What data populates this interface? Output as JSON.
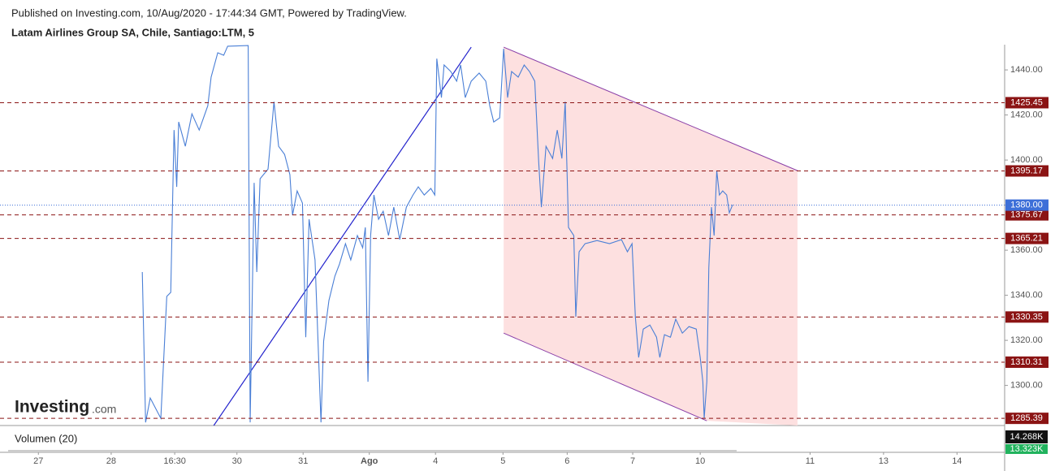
{
  "header": {
    "published": "Published on Investing.com, 10/Aug/2020 - 17:44:34 GMT, Powered by TradingView.",
    "symbol": "Latam Airlines Group SA, Chile, Santiago:LTM, 5"
  },
  "chart_data": {
    "type": "line",
    "color": "#4a7fd6",
    "x": [
      1.57,
      1.6,
      1.62,
      1.69,
      1.85,
      1.94,
      2.0,
      2.05,
      2.09,
      2.12,
      2.22,
      2.32,
      2.43,
      2.56,
      2.61,
      2.71,
      2.8,
      2.86,
      3.17,
      3.2,
      3.26,
      3.3,
      3.35,
      3.47,
      3.56,
      3.63,
      3.72,
      3.8,
      3.84,
      3.91,
      3.99,
      4.04,
      4.09,
      4.18,
      4.27,
      4.31,
      4.39,
      4.48,
      4.55,
      4.64,
      4.72,
      4.82,
      4.9,
      4.94,
      4.98,
      5.02,
      5.07,
      5.14,
      5.21,
      5.29,
      5.37,
      5.46,
      5.56,
      5.66,
      5.74,
      5.83,
      5.93,
      5.99,
      6.02,
      6.09,
      6.13,
      6.23,
      6.32,
      6.38,
      6.45,
      6.54,
      6.66,
      6.76,
      6.82,
      6.88,
      6.97,
      7.03,
      7.09,
      7.15,
      7.25,
      7.34,
      7.42,
      7.5,
      7.56,
      7.6,
      7.67,
      7.77,
      7.84,
      7.91,
      7.96,
      8.01,
      8.09,
      8.12,
      8.17,
      8.26,
      8.44,
      8.63,
      8.81,
      8.9,
      8.97,
      9.02,
      9.07,
      9.14,
      9.24,
      9.34,
      9.39,
      9.46,
      9.55,
      9.63,
      9.73,
      9.83,
      9.94,
      10.0,
      10.04,
      10.06,
      10.1,
      10.13,
      10.17,
      10.21,
      10.25,
      10.29,
      10.34,
      10.4,
      10.44,
      10.49
    ],
    "values": [
      1350.3,
      1310.6,
      1283.6,
      1294.4,
      1285.4,
      1339.5,
      1341.3,
      1413.3,
      1388.1,
      1416.9,
      1406.1,
      1420.5,
      1413.3,
      1424.1,
      1436.8,
      1447.6,
      1446.5,
      1450.5,
      1450.8,
      1283.6,
      1389.9,
      1350.3,
      1391.7,
      1396.0,
      1425.9,
      1406.1,
      1402.5,
      1393.5,
      1375.5,
      1386.3,
      1380.9,
      1321.4,
      1373.7,
      1355.7,
      1283.6,
      1319.6,
      1337.7,
      1348.5,
      1353.9,
      1362.9,
      1355.7,
      1366.5,
      1361.1,
      1370.1,
      1301.6,
      1366.5,
      1384.5,
      1373.7,
      1377.3,
      1366.5,
      1379.1,
      1364.7,
      1379.1,
      1384.5,
      1388.1,
      1384.5,
      1387.4,
      1384.5,
      1445.0,
      1427.7,
      1442.2,
      1439.3,
      1435.0,
      1442.2,
      1427.7,
      1435.0,
      1438.6,
      1435.0,
      1424.1,
      1416.9,
      1418.7,
      1449.4,
      1427.7,
      1439.3,
      1436.8,
      1442.2,
      1439.3,
      1435.0,
      1398.9,
      1379.1,
      1406.1,
      1400.7,
      1413.3,
      1400.7,
      1425.9,
      1370.1,
      1366.5,
      1330.5,
      1359.3,
      1362.9,
      1364.3,
      1362.9,
      1364.7,
      1359.3,
      1362.9,
      1330.5,
      1312.4,
      1325.0,
      1326.8,
      1321.4,
      1312.4,
      1322.5,
      1321.4,
      1329.4,
      1323.2,
      1326.1,
      1325.0,
      1312.4,
      1301.6,
      1285.4,
      1301.6,
      1352.1,
      1379.1,
      1366.5,
      1395.3,
      1384.5,
      1386.3,
      1384.5,
      1376.6,
      1380.2
    ],
    "xlim": [
      -0.58,
      14.6
    ],
    "ylim": [
      1282.2,
      1451.2
    ],
    "xticks": [
      {
        "value": 0,
        "label": "27"
      },
      {
        "value": 1.1,
        "label": "28"
      },
      {
        "value": 2.06,
        "label": "16:30"
      },
      {
        "value": 3.0,
        "label": "30"
      },
      {
        "value": 4.0,
        "label": "31"
      },
      {
        "value": 5.0,
        "label": "Ago"
      },
      {
        "value": 6.0,
        "label": "4"
      },
      {
        "value": 7.02,
        "label": "5"
      },
      {
        "value": 7.99,
        "label": "6"
      },
      {
        "value": 8.98,
        "label": "7"
      },
      {
        "value": 10.0,
        "label": "10"
      },
      {
        "value": 11.66,
        "label": "11"
      },
      {
        "value": 12.77,
        "label": "13"
      },
      {
        "value": 13.88,
        "label": "14"
      }
    ],
    "yticks": [
      {
        "value": 1300,
        "label": "1300.00"
      },
      {
        "value": 1320,
        "label": "1320.00"
      },
      {
        "value": 1340,
        "label": "1340.00"
      },
      {
        "value": 1360,
        "label": "1360.00"
      },
      {
        "value": 1380,
        "label": "1380.00"
      },
      {
        "value": 1400,
        "label": "1400.00"
      },
      {
        "value": 1420,
        "label": "1420.00"
      },
      {
        "value": 1440,
        "label": "1440.00"
      }
    ],
    "levels": [
      1425.45,
      1395.17,
      1375.67,
      1365.21,
      1330.35,
      1310.31,
      1285.39
    ],
    "level_color": "#8b1414",
    "last_price": {
      "value": 1380,
      "label": "1380.00"
    },
    "last_price_color": "#3d6fd8",
    "trend_lines": [
      {
        "x": [
          2.65,
          6.54
        ],
        "y": [
          1282.2,
          1450.1
        ],
        "color": "#2222cc"
      }
    ],
    "channel": {
      "upper": {
        "x": [
          7.03,
          11.47
        ],
        "y": [
          1450.1,
          1395.3
        ]
      },
      "lower": {
        "x": [
          7.03,
          10.1
        ],
        "y": [
          1323.2,
          1284.3
        ]
      },
      "color": "#8a3fa8",
      "fill": "#fde0e0"
    },
    "volume": {
      "label": "Volumen (20)",
      "last_labels": [
        "14.268K",
        "13.323K"
      ]
    },
    "watermark": "Investing",
    "watermark_suffix": ".com"
  }
}
